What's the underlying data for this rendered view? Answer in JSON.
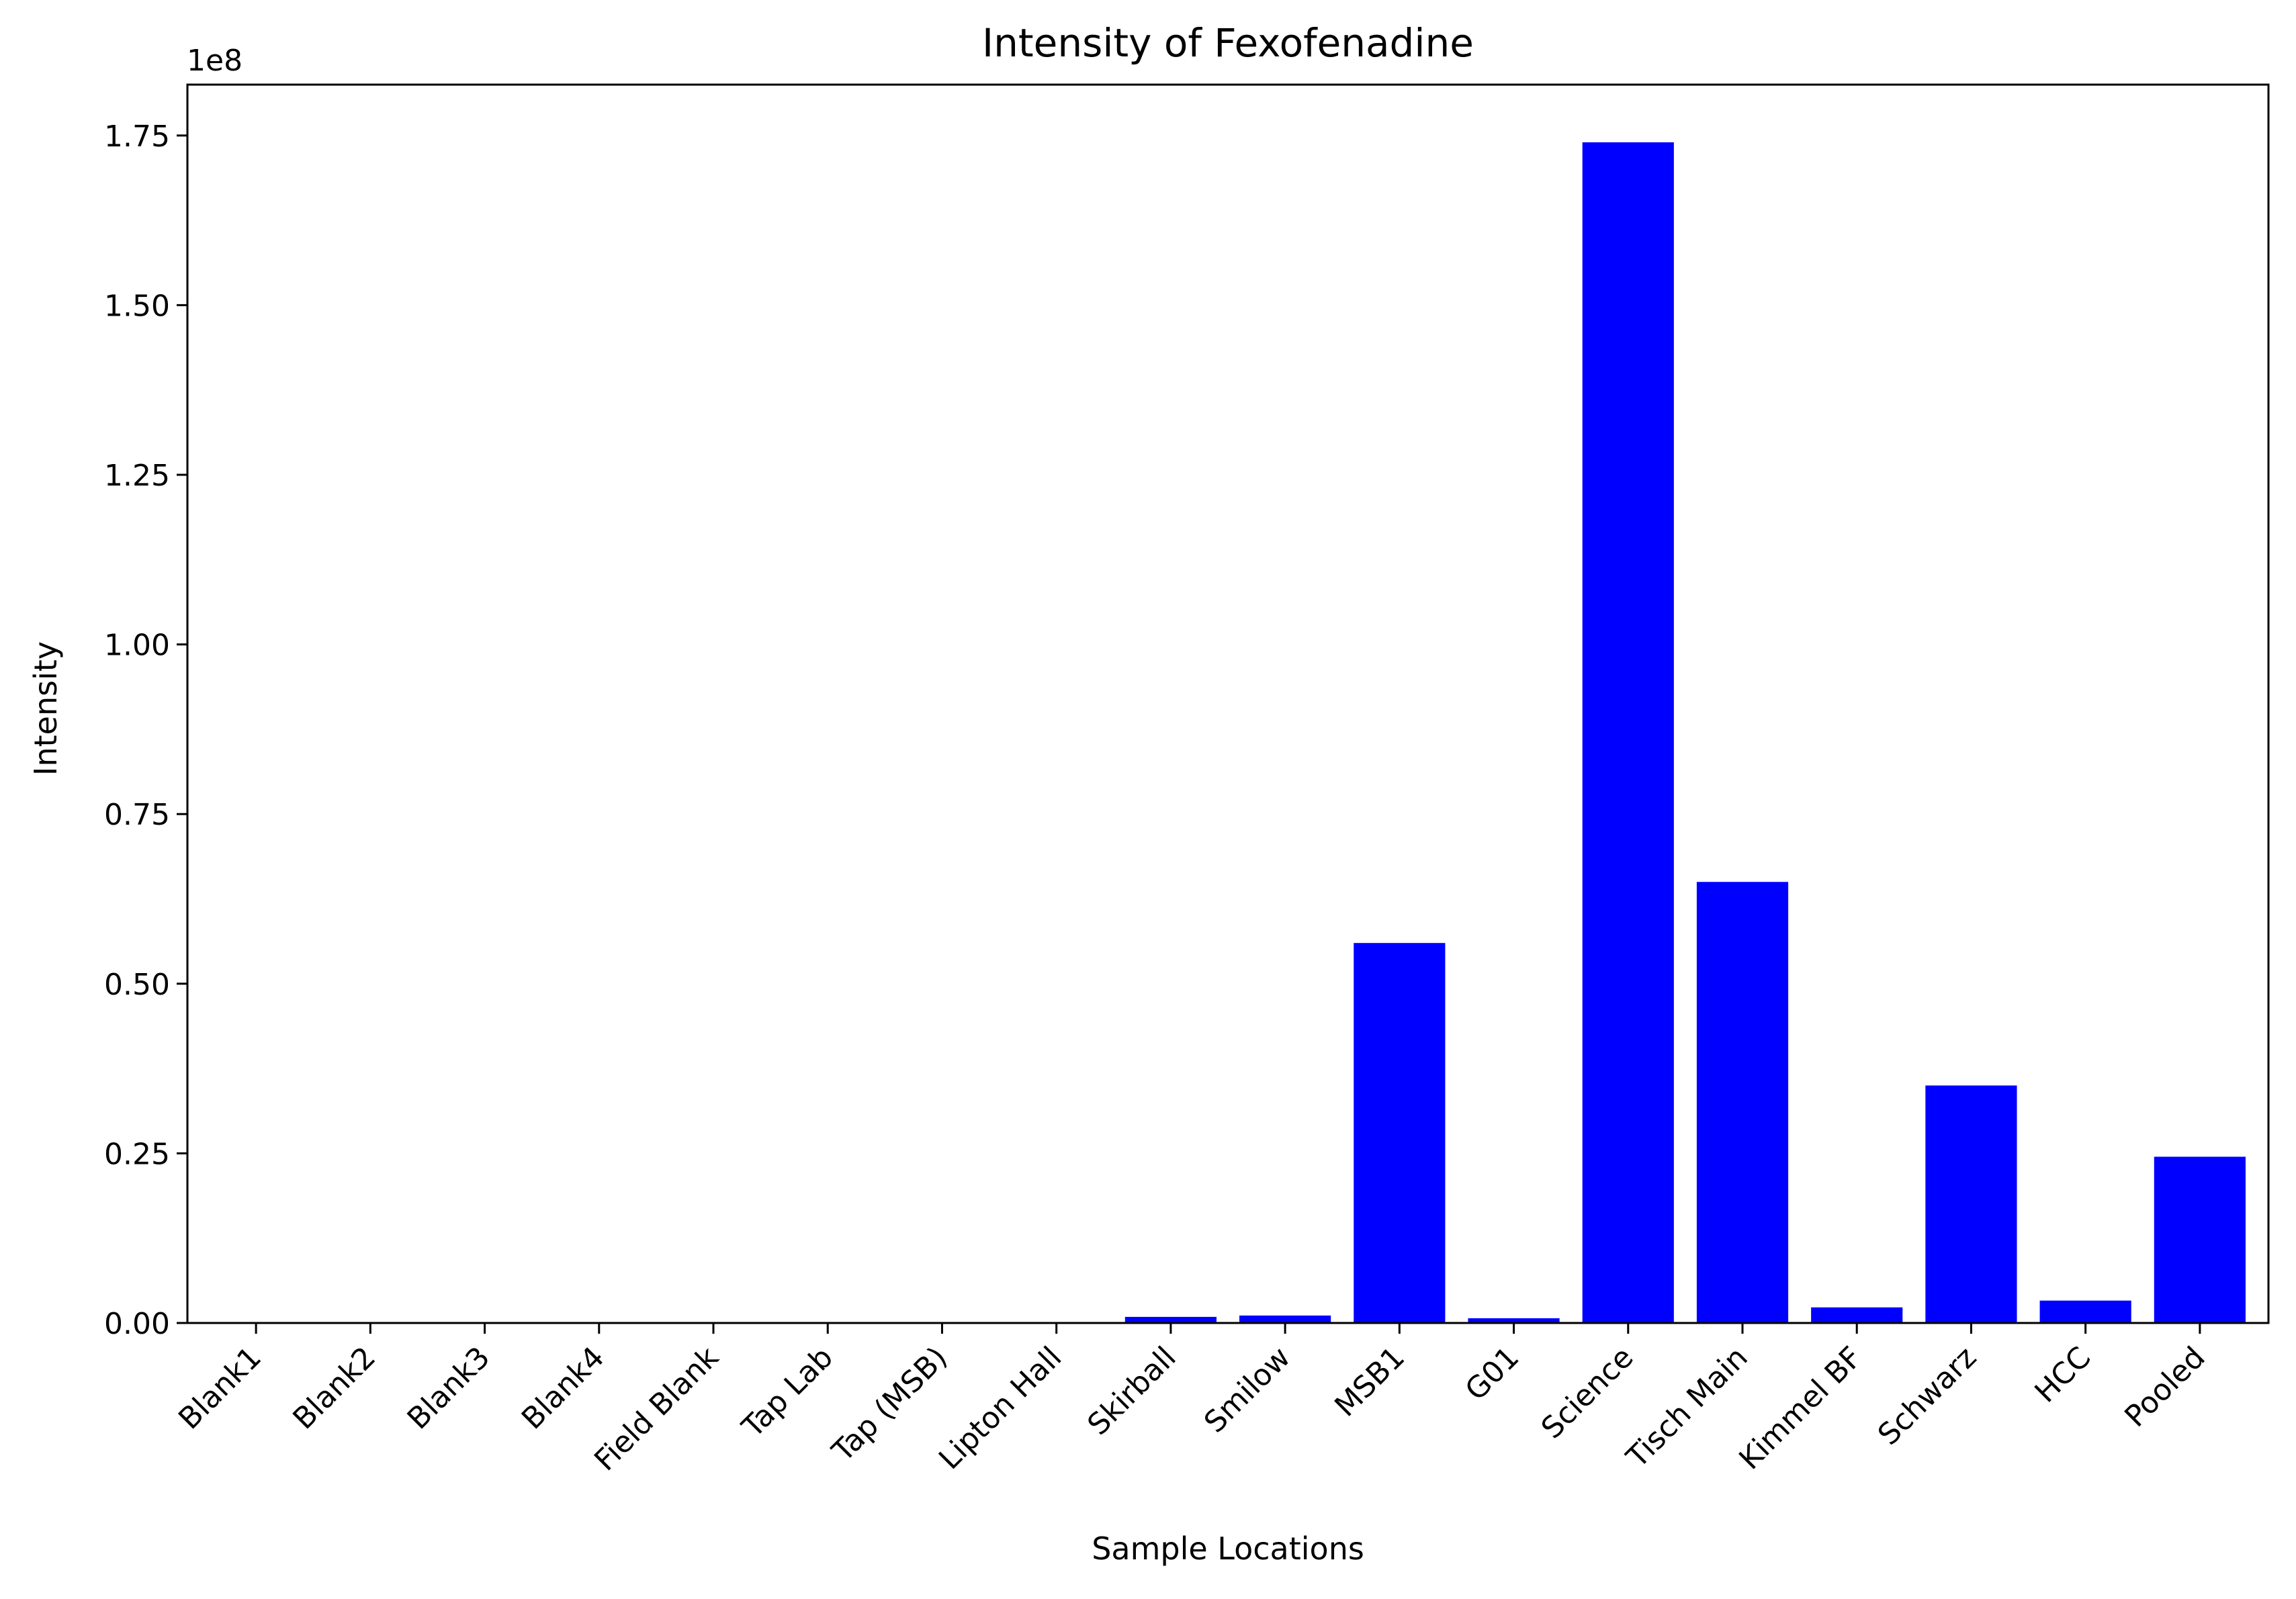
{
  "chart_data": {
    "type": "bar",
    "title": "Intensity of Fexofenadine",
    "xlabel": "Sample Locations",
    "ylabel": "Intensity",
    "y_offset_label": "1e8",
    "ylim": [
      0,
      182500000
    ],
    "yticks": [
      0,
      25000000,
      50000000,
      75000000,
      100000000,
      125000000,
      150000000,
      175000000
    ],
    "ytick_labels": [
      "0.00",
      "0.25",
      "0.50",
      "0.75",
      "1.00",
      "1.25",
      "1.50",
      "1.75"
    ],
    "bar_color": "#0000ff",
    "grid": false,
    "categories": [
      "Blank1",
      "Blank2",
      "Blank3",
      "Blank4",
      "Field Blank",
      "Tap Lab",
      "Tap (MSB)",
      "Lipton Hall",
      "Skirball",
      "Smilow",
      "MSB1",
      "G01",
      "Science",
      "Tisch Main",
      "Kimmel BF",
      "Schwarz",
      "HCC",
      "Pooled"
    ],
    "values": [
      0,
      0,
      0,
      0,
      0,
      0,
      0,
      0,
      900000,
      1100000,
      56000000,
      700000,
      174000000,
      65000000,
      2300000,
      35000000,
      3300000,
      24500000
    ]
  }
}
